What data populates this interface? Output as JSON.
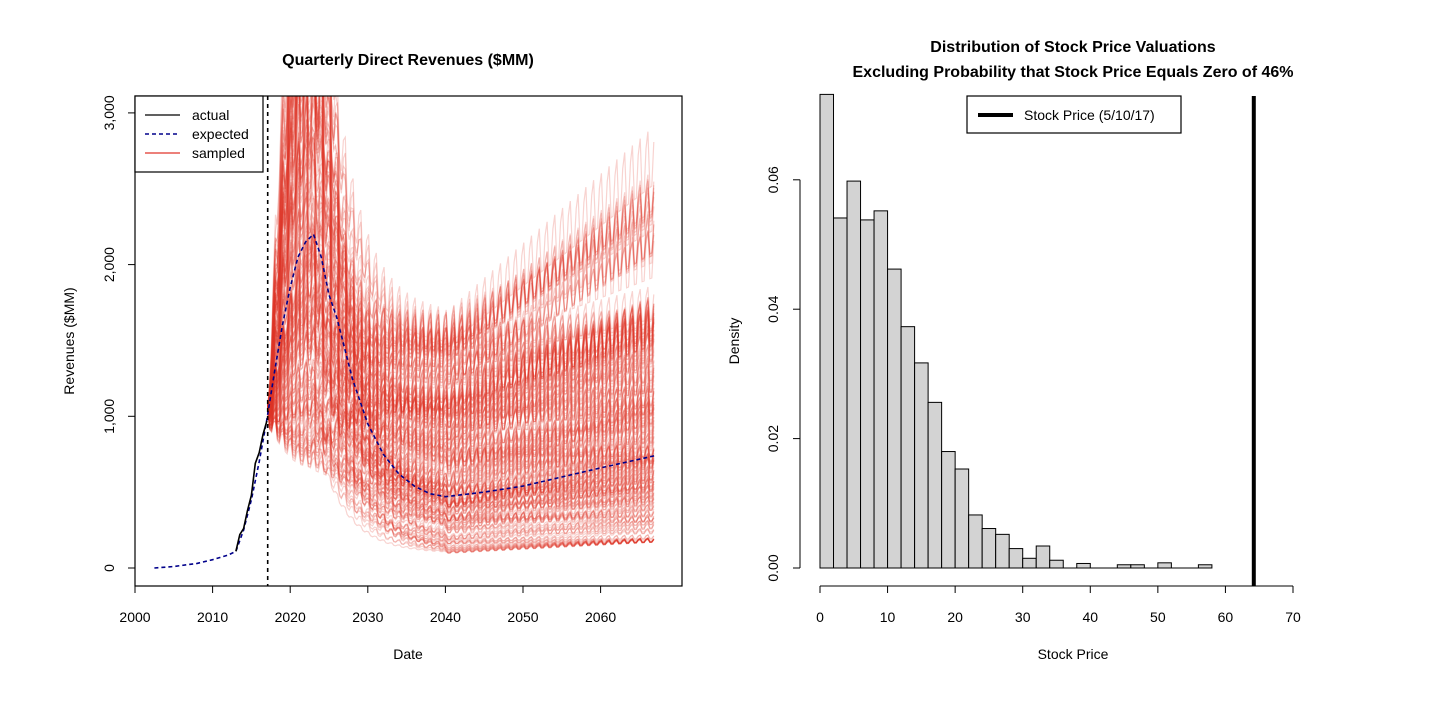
{
  "chart_data": [
    {
      "type": "line",
      "title": "Quarterly Direct Revenues ($MM)",
      "xlabel": "Date",
      "ylabel": "Revenues ($MM)",
      "xlim": [
        2000,
        2067
      ],
      "ylim": [
        0,
        3000
      ],
      "xticks": [
        2000,
        2010,
        2020,
        2030,
        2040,
        2050,
        2060
      ],
      "xtick_labels": [
        "2000",
        "2010",
        "2020",
        "2030",
        "2040",
        "2050",
        "2060"
      ],
      "yticks": [
        0,
        1000,
        2000,
        3000
      ],
      "ytick_labels": [
        "0",
        "1,000",
        "2,000",
        "3,000"
      ],
      "vline_x": 2017.1,
      "legend": {
        "position": "top-left",
        "entries": [
          {
            "label": "actual",
            "color": "#000000",
            "style": "solid"
          },
          {
            "label": "expected",
            "color": "#00008B",
            "style": "dashed"
          },
          {
            "label": "sampled",
            "color": "#E0352B",
            "style": "solid"
          }
        ]
      },
      "series": [
        {
          "name": "actual",
          "x": [
            2013.0,
            2013.5,
            2014.0,
            2014.5,
            2015.0,
            2015.5,
            2016.0,
            2016.5,
            2017.0
          ],
          "values": [
            110,
            220,
            260,
            380,
            480,
            690,
            760,
            880,
            970
          ]
        },
        {
          "name": "expected",
          "x": [
            2002.5,
            2005,
            2008,
            2010,
            2012,
            2013,
            2014,
            2015,
            2016,
            2017,
            2018,
            2019,
            2020,
            2021,
            2022,
            2023,
            2024,
            2025,
            2026,
            2028,
            2030,
            2032,
            2034,
            2036,
            2038,
            2040,
            2045,
            2050,
            2055,
            2060,
            2067
          ],
          "values": [
            0,
            10,
            30,
            55,
            85,
            110,
            250,
            450,
            700,
            980,
            1300,
            1600,
            1850,
            2050,
            2150,
            2200,
            2050,
            1800,
            1650,
            1250,
            950,
            750,
            620,
            540,
            490,
            470,
            500,
            540,
            600,
            660,
            740
          ]
        },
        {
          "name": "sampled",
          "path_count": 180,
          "x_start": 2017.1,
          "x_end": 2067,
          "peak_range_at_2023": [
            700,
            4500
          ],
          "level_range_at_2040": [
            100,
            1550
          ],
          "level_range_at_2067": [
            180,
            2100
          ]
        }
      ]
    },
    {
      "type": "bar",
      "subtype": "histogram",
      "title": "Distribution of Stock Price Valuations\nExcluding Probability that Stock Price Equals Zero of 46%",
      "title_lines": [
        "Distribution of Stock Price Valuations",
        "Excluding Probability that Stock Price Equals Zero of 46%"
      ],
      "xlabel": "Stock Price",
      "ylabel": "Density",
      "xlim": [
        0,
        70
      ],
      "ylim": [
        0,
        0.076
      ],
      "xticks": [
        0,
        10,
        20,
        30,
        40,
        50,
        60,
        70
      ],
      "xtick_labels": [
        "0",
        "10",
        "20",
        "30",
        "40",
        "50",
        "60",
        "70"
      ],
      "yticks": [
        0,
        0.02,
        0.04,
        0.06
      ],
      "ytick_labels": [
        "0.00",
        "0.02",
        "0.04",
        "0.06"
      ],
      "bin_width": 2,
      "bin_edges_start": 0,
      "values": [
        0.0732,
        0.0541,
        0.0598,
        0.0538,
        0.0552,
        0.0462,
        0.0373,
        0.0317,
        0.0256,
        0.018,
        0.0153,
        0.0082,
        0.0061,
        0.0052,
        0.003,
        0.0015,
        0.0034,
        0.0012,
        0,
        0.0007,
        0,
        0,
        0.0005,
        0.0005,
        0,
        0.0008,
        0,
        0,
        0.0005
      ],
      "vline_x": 64.2,
      "legend": {
        "position": "top-center",
        "entries": [
          {
            "label": "Stock Price (5/10/17)",
            "color": "#000000",
            "style": "thick-solid"
          }
        ]
      }
    }
  ]
}
